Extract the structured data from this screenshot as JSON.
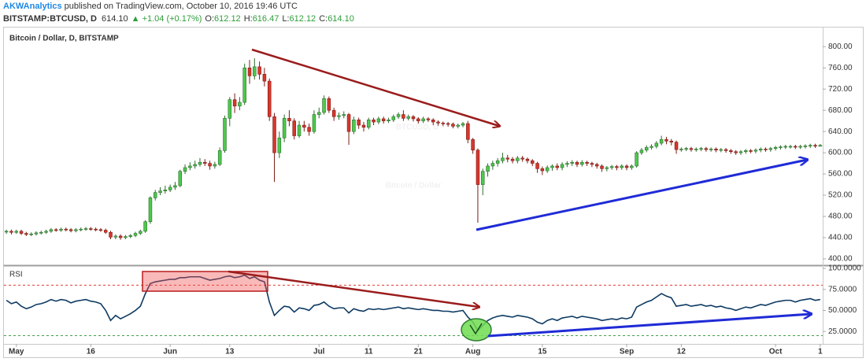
{
  "header": {
    "publisher": "AKWAnalytics",
    "published": " published on TradingView.com, October 10, 2016 19:46 UTC",
    "symbol": "BITSTAMP:BTCUSD, D",
    "last": "614.10",
    "change": "▲ +1.04 (+0.17%)",
    "ohlc": [
      [
        "O:",
        "612.12"
      ],
      [
        "H:",
        "616.47"
      ],
      [
        "L:",
        "612.12"
      ],
      [
        "C:",
        "614.10"
      ]
    ]
  },
  "chart_data": [
    {
      "type": "candlestick",
      "title": "Bitcoin / Dollar, D, BITSTAMP",
      "watermark": [
        "BTCUSD, D",
        "Bitcoin / Dollar"
      ],
      "up_color": "#4cc94c",
      "down_color": "#d9362b",
      "categories": [
        null,
        null,
        "May",
        null,
        null,
        null,
        null,
        null,
        null,
        null,
        null,
        null,
        null,
        null,
        null,
        null,
        null,
        "16",
        null,
        null,
        null,
        null,
        null,
        null,
        null,
        null,
        null,
        null,
        null,
        null,
        null,
        null,
        null,
        "Jun",
        null,
        null,
        null,
        null,
        null,
        null,
        null,
        null,
        null,
        null,
        null,
        "13",
        null,
        null,
        null,
        null,
        null,
        null,
        null,
        null,
        null,
        null,
        null,
        null,
        null,
        null,
        null,
        null,
        null,
        "Jul",
        null,
        null,
        null,
        null,
        null,
        null,
        null,
        null,
        null,
        "11",
        null,
        null,
        null,
        null,
        null,
        null,
        null,
        null,
        null,
        "21",
        null,
        null,
        null,
        null,
        null,
        null,
        null,
        null,
        null,
        null,
        "Aug",
        null,
        null,
        null,
        null,
        null,
        null,
        null,
        null,
        null,
        null,
        null,
        null,
        null,
        "15",
        null,
        null,
        null,
        null,
        null,
        null,
        null,
        null,
        null,
        null,
        null,
        null,
        null,
        null,
        null,
        null,
        "Sep",
        null,
        null,
        null,
        null,
        null,
        null,
        null,
        null,
        null,
        null,
        "12",
        null,
        null,
        null,
        null,
        null,
        null,
        null,
        null,
        null,
        null,
        null,
        null,
        null,
        null,
        null,
        null,
        null,
        null,
        "Oct",
        null,
        null,
        null,
        null,
        null,
        null,
        null,
        null,
        "1"
      ],
      "open": [
        451,
        452,
        450,
        452,
        448,
        446,
        447,
        449,
        450,
        452,
        455,
        454,
        456,
        455,
        453,
        455,
        456,
        457,
        456,
        455,
        454,
        450,
        441,
        443,
        440,
        442,
        444,
        448,
        452,
        470,
        515,
        525,
        528,
        530,
        535,
        538,
        565,
        572,
        575,
        578,
        582,
        580,
        575,
        578,
        604,
        665,
        700,
        688,
        695,
        760,
        745,
        762,
        748,
        735,
        668,
        600,
        628,
        665,
        660,
        632,
        652,
        648,
        640,
        672,
        676,
        702,
        680,
        668,
        670,
        672,
        640,
        662,
        652,
        648,
        662,
        658,
        664,
        660,
        662,
        668,
        672,
        665,
        668,
        664,
        660,
        664,
        662,
        658,
        656,
        655,
        654,
        650,
        652,
        655,
        625,
        605,
        540,
        565,
        575,
        580,
        585,
        590,
        588,
        585,
        590,
        588,
        585,
        580,
        570,
        566,
        572,
        575,
        572,
        578,
        580,
        582,
        578,
        582,
        580,
        578,
        575,
        570,
        572,
        574,
        572,
        575,
        572,
        575,
        600,
        605,
        610,
        612,
        618,
        625,
        622,
        620,
        606,
        607,
        608,
        606,
        607,
        608,
        606,
        607,
        605,
        606,
        604,
        602,
        600,
        602,
        604,
        603,
        605,
        607,
        606,
        608,
        610,
        611,
        612,
        612,
        611,
        612,
        613,
        614,
        612.12
      ],
      "high": [
        455,
        455,
        455,
        455,
        451,
        450,
        452,
        453,
        455,
        458,
        458,
        459,
        459,
        458,
        458,
        459,
        460,
        460,
        459,
        458,
        457,
        453,
        446,
        446,
        445,
        447,
        451,
        455,
        473,
        518,
        530,
        535,
        538,
        540,
        545,
        568,
        578,
        582,
        585,
        590,
        588,
        585,
        583,
        610,
        670,
        705,
        712,
        705,
        768,
        775,
        778,
        772,
        760,
        740,
        675,
        640,
        672,
        680,
        665,
        660,
        660,
        655,
        680,
        685,
        708,
        706,
        685,
        676,
        678,
        675,
        668,
        666,
        658,
        666,
        666,
        668,
        668,
        666,
        672,
        676,
        680,
        672,
        671,
        667,
        668,
        667,
        665,
        661,
        659,
        658,
        657,
        655,
        658,
        660,
        628,
        608,
        570,
        580,
        585,
        590,
        600,
        596,
        592,
        594,
        594,
        591,
        588,
        583,
        574,
        576,
        578,
        580,
        582,
        584,
        586,
        585,
        586,
        585,
        583,
        581,
        578,
        575,
        577,
        577,
        578,
        578,
        578,
        603,
        609,
        614,
        616,
        622,
        632,
        630,
        626,
        623,
        610,
        611,
        611,
        610,
        611,
        611,
        610,
        610,
        609,
        609,
        607,
        605,
        605,
        607,
        607,
        608,
        610,
        610,
        611,
        613,
        614,
        615,
        615,
        615,
        615,
        616,
        617,
        617,
        616.47
      ],
      "low": [
        447,
        446,
        447,
        445,
        443,
        443,
        444,
        446,
        447,
        449,
        451,
        451,
        452,
        450,
        450,
        452,
        453,
        453,
        452,
        451,
        447,
        437,
        437,
        436,
        437,
        439,
        441,
        445,
        449,
        466,
        510,
        520,
        523,
        526,
        530,
        535,
        560,
        567,
        570,
        574,
        575,
        568,
        570,
        575,
        600,
        650,
        675,
        680,
        690,
        730,
        738,
        738,
        725,
        660,
        545,
        590,
        620,
        650,
        625,
        628,
        640,
        632,
        636,
        665,
        672,
        675,
        660,
        662,
        665,
        615,
        635,
        645,
        640,
        644,
        652,
        654,
        655,
        656,
        658,
        664,
        660,
        661,
        659,
        655,
        656,
        658,
        652,
        651,
        650,
        649,
        646,
        646,
        648,
        618,
        598,
        468,
        520,
        555,
        568,
        574,
        580,
        582,
        580,
        580,
        583,
        580,
        575,
        562,
        558,
        562,
        566,
        567,
        567,
        573,
        575,
        573,
        574,
        575,
        573,
        570,
        564,
        565,
        568,
        567,
        568,
        567,
        568,
        572,
        596,
        601,
        606,
        608,
        614,
        616,
        614,
        598,
        602,
        603,
        602,
        602,
        603,
        602,
        602,
        601,
        601,
        600,
        598,
        596,
        596,
        598,
        599,
        599,
        601,
        602,
        602,
        604,
        606,
        607,
        608,
        607,
        607,
        608,
        609,
        609,
        612.12
      ],
      "close": [
        452,
        450,
        452,
        448,
        446,
        447,
        449,
        450,
        452,
        455,
        454,
        456,
        455,
        453,
        455,
        456,
        457,
        456,
        455,
        454,
        450,
        441,
        443,
        440,
        442,
        444,
        448,
        452,
        470,
        515,
        525,
        528,
        530,
        535,
        538,
        565,
        572,
        575,
        578,
        582,
        580,
        575,
        578,
        604,
        665,
        700,
        688,
        695,
        760,
        745,
        762,
        748,
        735,
        668,
        600,
        628,
        665,
        660,
        632,
        652,
        648,
        640,
        672,
        676,
        702,
        680,
        668,
        670,
        672,
        640,
        662,
        652,
        648,
        662,
        658,
        664,
        660,
        662,
        668,
        672,
        665,
        668,
        664,
        660,
        664,
        662,
        658,
        656,
        655,
        654,
        650,
        652,
        655,
        625,
        605,
        540,
        565,
        575,
        580,
        585,
        590,
        588,
        585,
        590,
        588,
        585,
        580,
        570,
        566,
        572,
        575,
        572,
        578,
        580,
        582,
        578,
        582,
        580,
        578,
        575,
        570,
        572,
        574,
        572,
        575,
        572,
        575,
        600,
        605,
        610,
        612,
        618,
        625,
        622,
        620,
        606,
        607,
        608,
        606,
        607,
        608,
        606,
        607,
        605,
        606,
        604,
        602,
        600,
        602,
        604,
        603,
        605,
        607,
        606,
        608,
        610,
        611,
        612,
        612,
        611,
        612,
        613,
        614,
        613.06,
        614.1
      ],
      "ylim": [
        391,
        836
      ],
      "yticks": [
        {
          "value": 400,
          "label": "400.00"
        },
        {
          "value": 440,
          "label": "440.00"
        },
        {
          "value": 480,
          "label": "480.00"
        },
        {
          "value": 520,
          "label": "520.00"
        },
        {
          "value": 560,
          "label": "560.00"
        },
        {
          "value": 600,
          "label": "600.00"
        },
        {
          "value": 640,
          "label": "640.00"
        },
        {
          "value": 680,
          "label": "680.00"
        },
        {
          "value": 720,
          "label": "720.00"
        },
        {
          "value": 760,
          "label": "760.00"
        },
        {
          "value": 800,
          "label": "800.00"
        }
      ]
    },
    {
      "type": "line",
      "title": "RSI",
      "series": [
        {
          "name": "RSI",
          "color": "#0d3a63",
          "values": [
            62,
            58,
            60,
            55,
            52,
            54,
            57,
            58,
            60,
            63,
            61,
            63,
            62,
            59,
            61,
            62,
            63,
            61,
            60,
            58,
            50,
            38,
            44,
            40,
            43,
            46,
            50,
            55,
            70,
            82,
            84,
            85,
            86,
            87,
            87,
            89,
            89,
            90,
            90,
            90,
            88,
            86,
            87,
            88,
            90,
            91,
            89,
            90,
            92,
            88,
            90,
            86,
            84,
            60,
            44,
            50,
            55,
            54,
            48,
            53,
            52,
            50,
            56,
            57,
            60,
            55,
            52,
            53,
            53,
            47,
            52,
            50,
            49,
            52,
            51,
            52,
            51,
            52,
            53,
            54,
            52,
            53,
            52,
            51,
            52,
            51,
            50,
            50,
            49,
            49,
            48,
            49,
            50,
            42,
            36,
            26,
            32,
            38,
            41,
            43,
            44,
            43,
            42,
            44,
            43,
            42,
            40,
            36,
            34,
            38,
            40,
            38,
            41,
            42,
            43,
            41,
            43,
            42,
            41,
            40,
            38,
            39,
            40,
            39,
            41,
            40,
            42,
            54,
            57,
            60,
            62,
            66,
            70,
            67,
            65,
            55,
            56,
            57,
            55,
            56,
            57,
            55,
            56,
            54,
            55,
            53,
            52,
            50,
            52,
            54,
            53,
            55,
            57,
            56,
            58,
            60,
            61,
            62,
            62,
            60,
            62,
            63,
            64,
            62,
            63
          ]
        }
      ],
      "levels": [
        {
          "value": 80,
          "color": "#e53935"
        },
        {
          "value": 20,
          "color": "#43a047"
        }
      ],
      "ylim": [
        12,
        101
      ],
      "yticks": [
        {
          "value": 25,
          "label": "25.0000"
        },
        {
          "value": 50,
          "label": "50.0000"
        },
        {
          "value": 75,
          "label": "75.0000"
        },
        {
          "value": 100,
          "label": "100.0000"
        }
      ]
    }
  ]
}
